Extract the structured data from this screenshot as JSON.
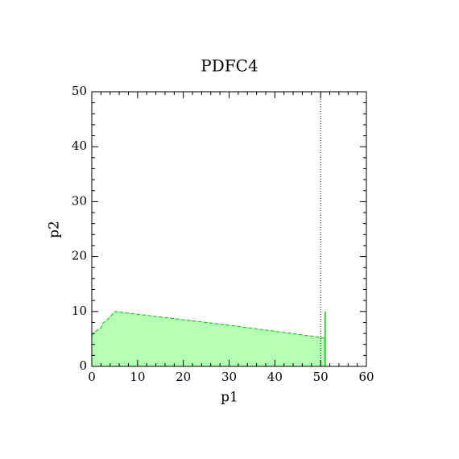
{
  "chart_data": {
    "type": "area",
    "title": "PDFC4",
    "x_label": "p1",
    "y_label": "p2",
    "series": [
      {
        "color": "#00cc00",
        "fill": "#b3ffb3",
        "x": [
          0,
          0.3,
          1,
          2,
          2.5,
          3,
          4,
          5,
          10,
          20,
          30,
          40,
          50,
          51
        ],
        "values": [
          5.5,
          6,
          6.5,
          7,
          8,
          8.2,
          9,
          10,
          9.5,
          8.5,
          7.5,
          6.4,
          5.3,
          5.1
        ]
      },
      {
        "type": "line",
        "color": "#00cc00",
        "x": [
          51,
          51
        ],
        "values": [
          0,
          10
        ]
      }
    ],
    "vline": 50,
    "xlim": [
      0,
      60
    ],
    "ylim": [
      0,
      50
    ],
    "xticks": [
      0,
      10,
      20,
      30,
      40,
      50,
      60
    ],
    "yticks": [
      0,
      10,
      20,
      30,
      40,
      50
    ],
    "xminorticks": [
      2,
      4,
      6,
      8,
      12,
      14,
      16,
      18,
      22,
      24,
      26,
      28,
      32,
      34,
      36,
      38,
      42,
      44,
      46,
      48,
      52,
      54,
      56,
      58
    ],
    "yminorticks": [
      2,
      4,
      6,
      8,
      12,
      14,
      16,
      18,
      22,
      24,
      26,
      28,
      32,
      34,
      36,
      38,
      42,
      44,
      46,
      48
    ]
  }
}
